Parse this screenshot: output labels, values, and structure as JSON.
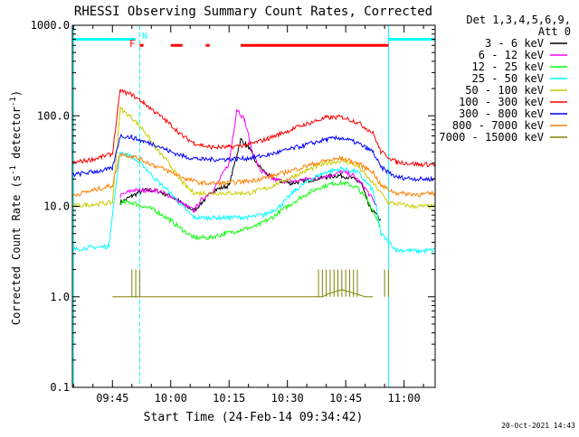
{
  "chart_data": {
    "type": "line",
    "title": "RHESSI Observing Summary Count Rates, Corrected",
    "xlabel": "Start Time (24-Feb-14 09:34:42)",
    "ylabel_main": "Corrected Count Rate (s",
    "ylabel_sup": "-1",
    "ylabel_mid": " detector",
    "ylabel_end": ")",
    "y_scale": "log",
    "ylim": [
      0.1,
      1000
    ],
    "xlim": [
      "09:34:42",
      "11:08:00"
    ],
    "y_ticks": [
      "0.1",
      "1.0",
      "10.0",
      "100.0",
      "1000.0"
    ],
    "x_ticks": [
      "09:45",
      "10:00",
      "10:15",
      "10:30",
      "10:45",
      "11:00"
    ],
    "grid": false,
    "legend_position": "right",
    "legend_header": [
      "Det 1,3,4,5,6,9,",
      "Att 0"
    ],
    "footer": "20-Oct-2021 14:43",
    "flag_labels": {
      "F": "F",
      "N": "N"
    },
    "series": [
      {
        "name": "3 - 6 keV",
        "color": "#000000",
        "points": [
          [
            "09:35",
            null
          ],
          [
            "09:47",
            11
          ],
          [
            "09:50",
            13
          ],
          [
            "09:53",
            15
          ],
          [
            "09:56",
            15
          ],
          [
            "10:00",
            13
          ],
          [
            "10:04",
            10
          ],
          [
            "10:06",
            9
          ],
          [
            "10:08",
            11
          ],
          [
            "10:11",
            15
          ],
          [
            "10:15",
            17
          ],
          [
            "10:18",
            55
          ],
          [
            "10:20",
            45
          ],
          [
            "10:22",
            30
          ],
          [
            "10:25",
            22
          ],
          [
            "10:28",
            19
          ],
          [
            "10:31",
            18
          ],
          [
            "10:34",
            19
          ],
          [
            "10:37",
            20
          ],
          [
            "10:40",
            21
          ],
          [
            "10:43",
            22
          ],
          [
            "10:46",
            21
          ],
          [
            "10:49",
            18
          ],
          [
            "10:51",
            10
          ],
          [
            "10:54",
            7
          ],
          [
            "10:55",
            null
          ]
        ]
      },
      {
        "name": "6 - 12 keV",
        "color": "#ff00ff",
        "points": [
          [
            "09:35",
            null
          ],
          [
            "09:47",
            13
          ],
          [
            "09:50",
            15
          ],
          [
            "09:53",
            15
          ],
          [
            "09:56",
            15
          ],
          [
            "10:00",
            13
          ],
          [
            "10:04",
            10
          ],
          [
            "10:06",
            9
          ],
          [
            "10:08",
            12
          ],
          [
            "10:11",
            15
          ],
          [
            "10:15",
            30
          ],
          [
            "10:17",
            120
          ],
          [
            "10:19",
            90
          ],
          [
            "10:21",
            40
          ],
          [
            "10:23",
            25
          ],
          [
            "10:26",
            20
          ],
          [
            "10:29",
            19
          ],
          [
            "10:32",
            19
          ],
          [
            "10:35",
            20
          ],
          [
            "10:38",
            21
          ],
          [
            "10:41",
            22
          ],
          [
            "10:44",
            24
          ],
          [
            "10:47",
            22
          ],
          [
            "10:50",
            16
          ],
          [
            "10:53",
            10
          ],
          [
            "10:55",
            null
          ]
        ]
      },
      {
        "name": "12 - 25 keV",
        "color": "#00ff00",
        "points": [
          [
            "09:35",
            null
          ],
          [
            "09:47",
            11
          ],
          [
            "09:50",
            11
          ],
          [
            "09:53",
            10
          ],
          [
            "09:56",
            9
          ],
          [
            "10:00",
            7
          ],
          [
            "10:03",
            5.5
          ],
          [
            "10:06",
            4.5
          ],
          [
            "10:10",
            4.5
          ],
          [
            "10:14",
            5
          ],
          [
            "10:18",
            5.5
          ],
          [
            "10:22",
            6
          ],
          [
            "10:26",
            7.5
          ],
          [
            "10:30",
            10
          ],
          [
            "10:34",
            13
          ],
          [
            "10:38",
            16
          ],
          [
            "10:42",
            18
          ],
          [
            "10:45",
            18
          ],
          [
            "10:48",
            16
          ],
          [
            "10:51",
            11
          ],
          [
            "10:54",
            6
          ],
          [
            "10:55",
            null
          ]
        ]
      },
      {
        "name": "25 - 50 keV",
        "color": "#00ffff",
        "points": [
          [
            "09:34",
            3.3
          ],
          [
            "09:39",
            3.5
          ],
          [
            "09:44",
            3.6
          ],
          [
            "09:47",
            40
          ],
          [
            "09:50",
            35
          ],
          [
            "09:53",
            28
          ],
          [
            "09:56",
            20
          ],
          [
            "10:00",
            14
          ],
          [
            "10:03",
            10
          ],
          [
            "10:06",
            7.5
          ],
          [
            "10:10",
            7.5
          ],
          [
            "10:15",
            7.5
          ],
          [
            "10:20",
            7.6
          ],
          [
            "10:24",
            8
          ],
          [
            "10:28",
            10
          ],
          [
            "10:32",
            15
          ],
          [
            "10:36",
            20
          ],
          [
            "10:40",
            24
          ],
          [
            "10:44",
            26
          ],
          [
            "10:48",
            24
          ],
          [
            "10:52",
            15
          ],
          [
            "10:54",
            5
          ],
          [
            "10:58",
            3.3
          ],
          [
            "11:04",
            3.2
          ],
          [
            "11:09",
            3.3
          ]
        ]
      },
      {
        "name": "50 - 100 keV",
        "color": "#cccc00",
        "points": [
          [
            "09:34",
            10
          ],
          [
            "09:40",
            10.5
          ],
          [
            "09:45",
            11
          ],
          [
            "09:47",
            120
          ],
          [
            "09:50",
            95
          ],
          [
            "09:53",
            70
          ],
          [
            "09:56",
            45
          ],
          [
            "10:00",
            28
          ],
          [
            "10:03",
            18
          ],
          [
            "10:06",
            14
          ],
          [
            "10:10",
            14
          ],
          [
            "10:15",
            14
          ],
          [
            "10:20",
            14
          ],
          [
            "10:25",
            16
          ],
          [
            "10:30",
            20
          ],
          [
            "10:35",
            25
          ],
          [
            "10:40",
            30
          ],
          [
            "10:44",
            32
          ],
          [
            "10:48",
            28
          ],
          [
            "10:52",
            18
          ],
          [
            "10:56",
            11
          ],
          [
            "11:02",
            10
          ],
          [
            "11:09",
            10
          ]
        ]
      },
      {
        "name": "100 - 300 keV",
        "color": "#ff0000",
        "points": [
          [
            "09:34",
            30
          ],
          [
            "09:40",
            33
          ],
          [
            "09:45",
            38
          ],
          [
            "09:47",
            190
          ],
          [
            "09:50",
            170
          ],
          [
            "09:53",
            140
          ],
          [
            "09:56",
            110
          ],
          [
            "10:00",
            80
          ],
          [
            "10:03",
            60
          ],
          [
            "10:06",
            50
          ],
          [
            "10:10",
            45
          ],
          [
            "10:15",
            45
          ],
          [
            "10:20",
            48
          ],
          [
            "10:25",
            56
          ],
          [
            "10:30",
            68
          ],
          [
            "10:35",
            82
          ],
          [
            "10:40",
            95
          ],
          [
            "10:44",
            97
          ],
          [
            "10:48",
            85
          ],
          [
            "10:52",
            65
          ],
          [
            "10:54",
            40
          ],
          [
            "10:58",
            31
          ],
          [
            "11:04",
            29
          ],
          [
            "11:09",
            29
          ]
        ]
      },
      {
        "name": "300 - 800 keV",
        "color": "#0000ff",
        "points": [
          [
            "09:34",
            22
          ],
          [
            "09:40",
            24
          ],
          [
            "09:45",
            26
          ],
          [
            "09:47",
            60
          ],
          [
            "09:50",
            58
          ],
          [
            "09:53",
            52
          ],
          [
            "09:56",
            48
          ],
          [
            "10:00",
            40
          ],
          [
            "10:04",
            35
          ],
          [
            "10:08",
            33
          ],
          [
            "10:14",
            33
          ],
          [
            "10:20",
            34
          ],
          [
            "10:25",
            37
          ],
          [
            "10:30",
            42
          ],
          [
            "10:35",
            48
          ],
          [
            "10:40",
            55
          ],
          [
            "10:44",
            57
          ],
          [
            "10:48",
            50
          ],
          [
            "10:52",
            40
          ],
          [
            "10:54",
            27
          ],
          [
            "10:58",
            21
          ],
          [
            "11:04",
            20
          ],
          [
            "11:09",
            20
          ]
        ]
      },
      {
        "name": "800 - 7000 keV",
        "color": "#ff8000",
        "points": [
          [
            "09:34",
            13
          ],
          [
            "09:40",
            15
          ],
          [
            "09:45",
            17
          ],
          [
            "09:47",
            38
          ],
          [
            "09:50",
            36
          ],
          [
            "09:53",
            32
          ],
          [
            "09:56",
            28
          ],
          [
            "10:00",
            24
          ],
          [
            "10:04",
            20
          ],
          [
            "10:08",
            18
          ],
          [
            "10:14",
            18
          ],
          [
            "10:20",
            19
          ],
          [
            "10:25",
            21
          ],
          [
            "10:30",
            24
          ],
          [
            "10:35",
            28
          ],
          [
            "10:40",
            32
          ],
          [
            "10:44",
            34
          ],
          [
            "10:48",
            30
          ],
          [
            "10:52",
            24
          ],
          [
            "10:54",
            17
          ],
          [
            "10:58",
            14
          ],
          [
            "11:04",
            13.5
          ],
          [
            "11:09",
            14
          ]
        ]
      },
      {
        "name": "7000 - 15000 keV",
        "color": "#808000",
        "points": [
          [
            "09:45",
            1.0
          ],
          [
            "09:47",
            1.0
          ],
          [
            "09:48",
            1.0
          ],
          [
            "09:53",
            1.0
          ],
          [
            "09:55",
            1.0
          ],
          [
            "09:59",
            1.0
          ],
          [
            "10:05",
            1.0
          ],
          [
            "10:10",
            1.0
          ],
          [
            "10:20",
            1.0
          ],
          [
            "10:30",
            1.0
          ],
          [
            "10:39",
            1.0
          ],
          [
            "10:41",
            1.1
          ],
          [
            "10:44",
            1.2
          ],
          [
            "10:47",
            1.1
          ],
          [
            "10:50",
            1.0
          ],
          [
            "10:52",
            1.0
          ]
        ]
      }
    ],
    "spikes_7000_15000": [
      "09:50",
      "09:51",
      "09:52",
      "10:38",
      "10:39",
      "10:40",
      "10:41",
      "10:42",
      "10:43",
      "10:44",
      "10:45",
      "10:46",
      "10:47",
      "10:48",
      "10:55",
      "10:56"
    ],
    "flag_bars": [
      {
        "color": "#00ffff",
        "level": 700,
        "ranges": [
          [
            "09:34",
            "09:51"
          ],
          [
            "10:56",
            "11:09"
          ]
        ]
      },
      {
        "color": "#ff0000",
        "level": 600,
        "ranges": [
          [
            "09:52",
            "09:53"
          ],
          [
            "10:00",
            "10:03"
          ],
          [
            "10:09",
            "10:10"
          ],
          [
            "10:18",
            "10:56"
          ]
        ]
      }
    ],
    "markers": [
      {
        "type": "solid",
        "color": "#00ffff",
        "time": "09:35"
      },
      {
        "type": "solid",
        "color": "#00ffff",
        "time": "10:56"
      },
      {
        "type": "dashed",
        "color": "#00ffff",
        "time": "09:52"
      },
      {
        "type": "dashed",
        "color": "#00ffff",
        "time": "11:08"
      }
    ]
  }
}
